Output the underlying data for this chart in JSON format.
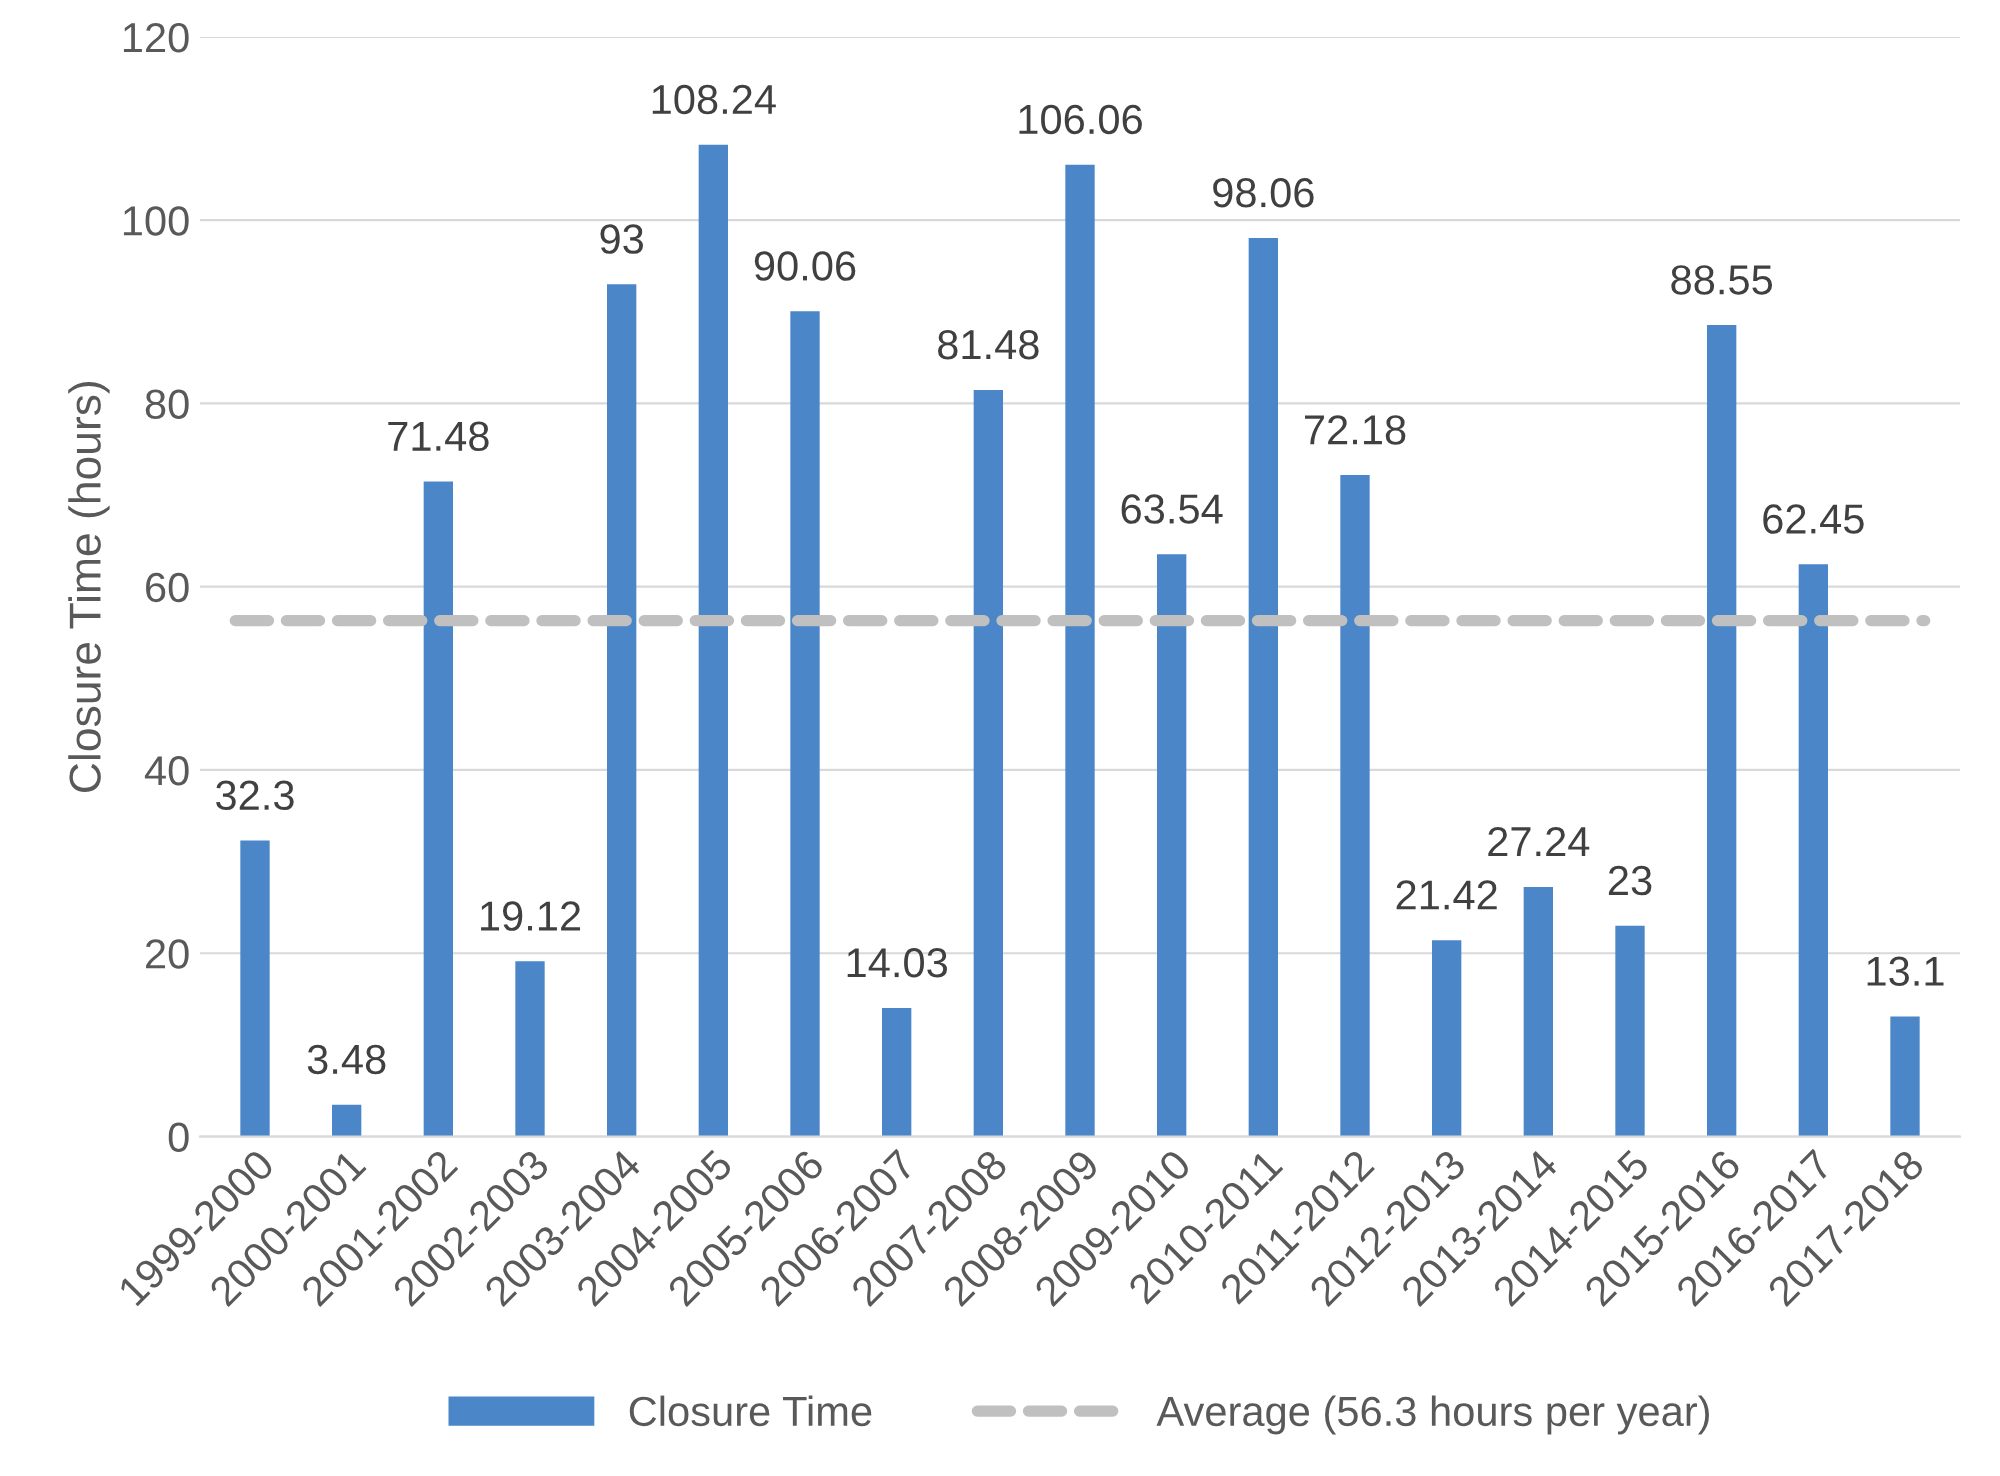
{
  "chart_data": {
    "type": "bar",
    "ylabel": "Closure Time (hours)",
    "categories": [
      "1999-2000",
      "2000-2001",
      "2001-2002",
      "2002-2003",
      "2003-2004",
      "2004-2005",
      "2005-2006",
      "2006-2007",
      "2007-2008",
      "2008-2009",
      "2009-2010",
      "2010-2011",
      "2011-2012",
      "2012-2013",
      "2013-2014",
      "2014-2015",
      "2015-2016",
      "2016-2017",
      "2017-2018"
    ],
    "series": [
      {
        "name": "Closure Time",
        "color": "#4a86c8",
        "values": [
          32.3,
          3.48,
          71.48,
          19.12,
          93,
          108.24,
          90.06,
          14.03,
          81.48,
          106.06,
          63.54,
          98.06,
          72.18,
          21.42,
          27.24,
          23,
          88.55,
          62.45,
          13.1
        ]
      }
    ],
    "ref_lines": [
      {
        "axis": "y",
        "value": 56.3,
        "label": "Average (56.3 hours per year)",
        "color": "#c0c0c0",
        "line_style": "dashed"
      }
    ],
    "ylim": [
      0,
      120
    ],
    "yticks": [
      0,
      20,
      40,
      60,
      80,
      100,
      120
    ],
    "grid": "y",
    "legend": "bottom",
    "data_labels": true
  }
}
